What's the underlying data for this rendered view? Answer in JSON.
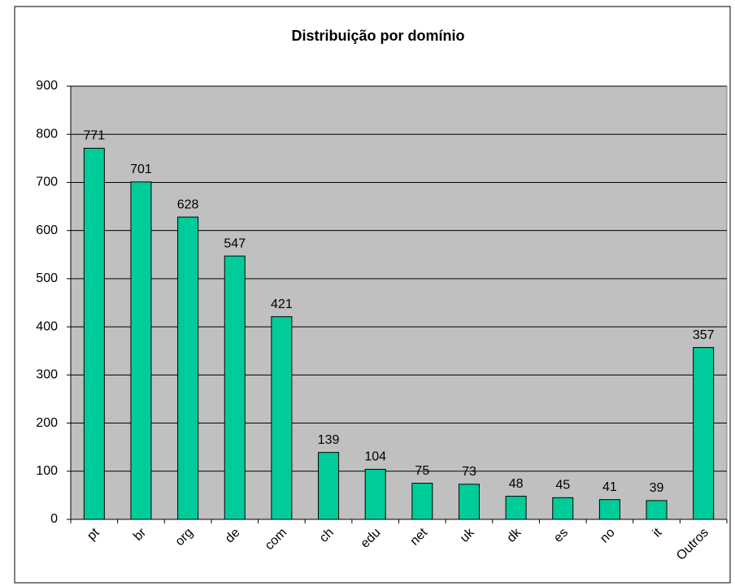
{
  "chart_data": {
    "type": "bar",
    "title": "Distribuição por domínio",
    "categories": [
      "pt",
      "br",
      "org",
      "de",
      "com",
      "ch",
      "edu",
      "net",
      "uk",
      "dk",
      "es",
      "no",
      "it",
      "Outros"
    ],
    "values": [
      771,
      701,
      628,
      547,
      421,
      139,
      104,
      75,
      73,
      48,
      45,
      41,
      39,
      357
    ],
    "color": "#00cc99",
    "ylim": [
      0,
      900
    ],
    "yticks": [
      0,
      100,
      200,
      300,
      400,
      500,
      600,
      700,
      800,
      900
    ],
    "grid": true
  }
}
